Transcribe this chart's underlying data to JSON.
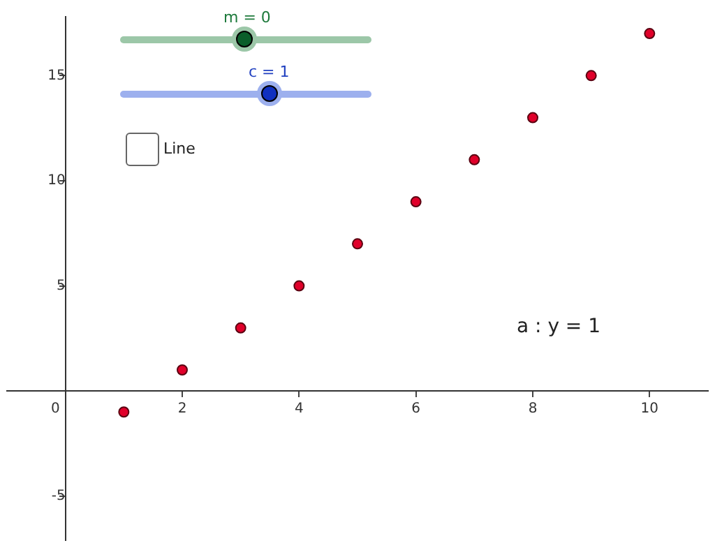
{
  "chart_data": {
    "type": "scatter",
    "x": [
      1,
      2,
      3,
      4,
      5,
      6,
      7,
      8,
      9,
      10
    ],
    "series": [
      {
        "color": "#e0002a",
        "values": [
          -1,
          1,
          3,
          5,
          7,
          9,
          11,
          13,
          15,
          17
        ]
      }
    ],
    "xlim": [
      -1,
      11
    ],
    "ylim": [
      -7.1,
      17.8
    ],
    "xticks": [
      0,
      2,
      4,
      6,
      8,
      10
    ],
    "yticks": [
      -5,
      5,
      10,
      15
    ],
    "grid": false,
    "legend": false,
    "marker": "circle",
    "annotations": [
      "m = 0",
      "c = 1",
      "Line",
      "a : y = 1"
    ]
  }
}
